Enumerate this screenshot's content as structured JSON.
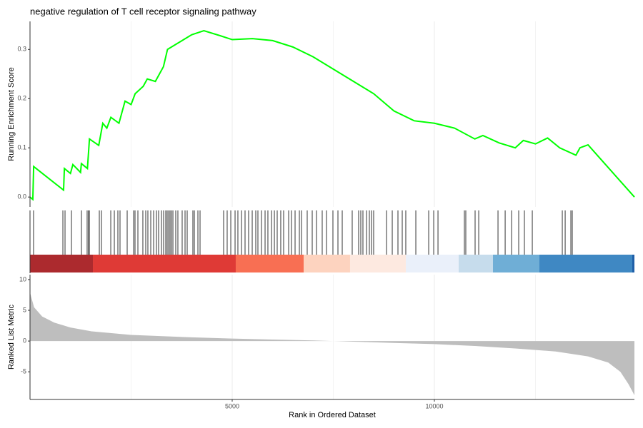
{
  "chart_data": [
    {
      "type": "line",
      "title": "negative regulation of T cell receptor signaling pathway",
      "y_label": "Running Enrichment Score",
      "color": "#00ff00",
      "grid": true,
      "x": [
        0,
        70,
        90,
        830,
        850,
        1000,
        1060,
        1250,
        1270,
        1420,
        1470,
        1700,
        1800,
        1900,
        2000,
        2200,
        2350,
        2500,
        2600,
        2800,
        2900,
        3100,
        3300,
        3400,
        3600,
        3800,
        4000,
        4300,
        4700,
        5000,
        5500,
        6000,
        6500,
        7000,
        7500,
        8000,
        8500,
        9000,
        9500,
        10000,
        10500,
        11000,
        11200,
        11600,
        12000,
        12200,
        12500,
        12800,
        13100,
        13500,
        13600,
        13800,
        14947
      ],
      "values": [
        0.0,
        -0.005,
        0.062,
        0.014,
        0.058,
        0.048,
        0.066,
        0.05,
        0.068,
        0.058,
        0.118,
        0.105,
        0.15,
        0.14,
        0.162,
        0.15,
        0.195,
        0.188,
        0.21,
        0.225,
        0.24,
        0.235,
        0.265,
        0.3,
        0.31,
        0.32,
        0.33,
        0.338,
        0.328,
        0.32,
        0.322,
        0.318,
        0.305,
        0.285,
        0.26,
        0.235,
        0.21,
        0.175,
        0.155,
        0.15,
        0.14,
        0.118,
        0.125,
        0.11,
        0.1,
        0.115,
        0.108,
        0.12,
        0.1,
        0.085,
        0.1,
        0.106,
        0.0
      ],
      "xlim": [
        0,
        14947
      ],
      "ylim": [
        -0.02,
        0.357
      ],
      "yticks": [
        {
          "value": 0,
          "label": "0.0"
        },
        0.1,
        0.2,
        0.3
      ]
    },
    {
      "type": "rug",
      "color": "#000000",
      "xlim": [
        0,
        14947
      ],
      "x": [
        88,
        813,
        866,
        1025,
        1272,
        1413,
        1449,
        1466,
        1714,
        1767,
        1997,
        2085,
        2173,
        2226,
        2403,
        2562,
        2597,
        2668,
        2791,
        2862,
        2915,
        2986,
        3057,
        3127,
        3180,
        3251,
        3304,
        3357,
        3392,
        3428,
        3463,
        3498,
        3534,
        3604,
        3657,
        3763,
        3834,
        3887,
        4028,
        4064,
        4152,
        4205,
        4788,
        4876,
        4965,
        5071,
        5141,
        5230,
        5318,
        5406,
        5495,
        5583,
        5636,
        5724,
        5813,
        5883,
        5972,
        6043,
        6113,
        6201,
        6272,
        6396,
        6466,
        6555,
        6661,
        6714,
        6855,
        6979,
        7085,
        7226,
        7332,
        7491,
        7615,
        7721,
        7968,
        8127,
        8180,
        8233,
        8322,
        8392,
        8445,
        8498,
        8816,
        8958,
        9099,
        9205,
        9293,
        9541,
        9859,
        9983,
        10089,
        10742,
        10777,
        11007,
        11096,
        11573,
        11750,
        11909,
        12085,
        12226,
        12421,
        13163,
        13234,
        13375,
        13410
      ],
      "band_edges": [
        0,
        1555,
        5088,
        6767,
        7915,
        9293,
        10601,
        11449,
        12597,
        14894,
        14947
      ],
      "band_colors": [
        "#ac2a2e",
        "#df3a36",
        "#f86f53",
        "#fdd3bf",
        "#fde9e0",
        "#eaf0fa",
        "#c6dcec",
        "#6faed6",
        "#3f88c3",
        "#1f5fa8"
      ]
    },
    {
      "type": "area",
      "y_label": "Ranked List Metric",
      "x_label": "Rank in Ordered Dataset",
      "color": "#bebebe",
      "grid": true,
      "x": [
        0,
        100,
        300,
        600,
        1000,
        1500,
        2500,
        4000,
        5000,
        6000,
        7000,
        7500,
        8000,
        9000,
        10000,
        11000,
        12000,
        13000,
        13800,
        14300,
        14600,
        14800,
        14947
      ],
      "values": [
        7.9,
        5.5,
        4,
        3,
        2.2,
        1.6,
        1.0,
        0.6,
        0.4,
        0.25,
        0.1,
        0,
        -0.1,
        -0.3,
        -0.5,
        -0.8,
        -1.2,
        -1.7,
        -2.5,
        -3.5,
        -5,
        -7,
        -8.8
      ],
      "xlim": [
        0,
        14947
      ],
      "ylim": [
        -9.5,
        10.8
      ],
      "xticks": [
        5000,
        10000
      ],
      "x_minor_ticks": [
        2500,
        7500,
        12500
      ],
      "yticks": [
        10,
        5,
        0,
        -5
      ]
    }
  ]
}
